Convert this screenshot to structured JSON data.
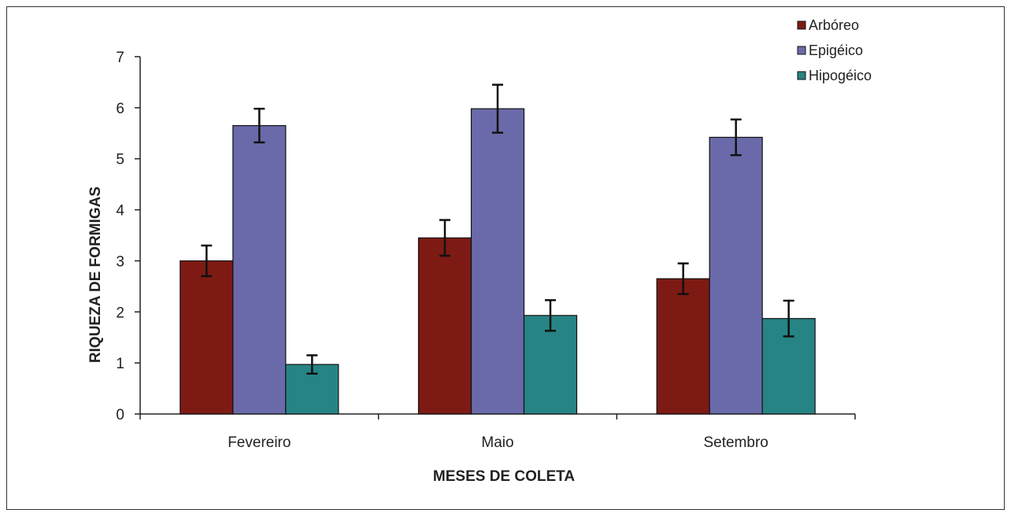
{
  "chart_data": {
    "type": "bar",
    "categories": [
      "Fevereiro",
      "Maio",
      "Setembro"
    ],
    "series": [
      {
        "name": "Arbóreo",
        "color": "#7d1a14",
        "values": [
          3.0,
          3.45,
          2.65
        ],
        "errors": [
          0.3,
          0.35,
          0.3
        ]
      },
      {
        "name": "Epigéico",
        "color": "#6a6aaa",
        "values": [
          5.65,
          5.98,
          5.42
        ],
        "errors": [
          0.33,
          0.47,
          0.35
        ]
      },
      {
        "name": "Hipogéico",
        "color": "#278484",
        "values": [
          0.97,
          1.93,
          1.87
        ],
        "errors": [
          0.18,
          0.3,
          0.35
        ]
      }
    ],
    "xlabel": "MESES DE COLETA",
    "ylabel": "RIQUEZA DE FORMIGAS",
    "ylim": [
      0,
      7
    ],
    "yticks": [
      0,
      1,
      2,
      3,
      4,
      5,
      6,
      7
    ],
    "grid": false,
    "legend_position": "top-right",
    "error_bars": true
  }
}
